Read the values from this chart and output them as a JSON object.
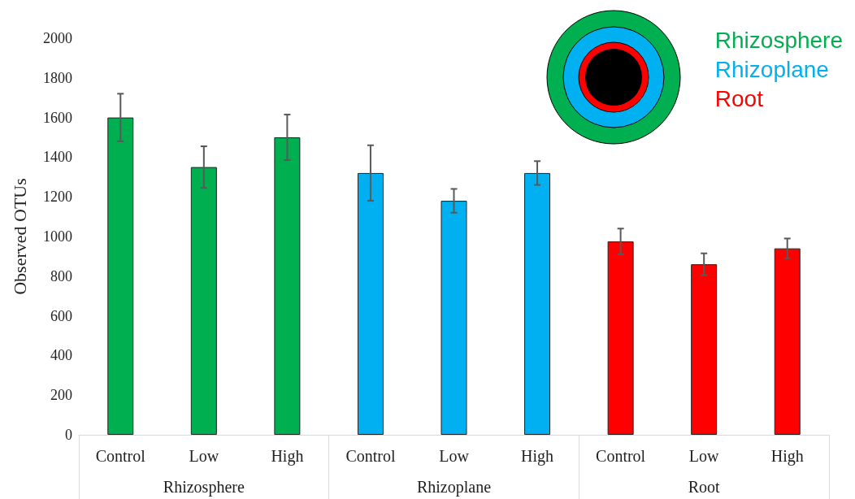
{
  "chart_data": {
    "type": "bar",
    "ylabel": "Observed OTUs",
    "categories": [
      "Control",
      "Low",
      "High",
      "Control",
      "Low",
      "High",
      "Control",
      "Low",
      "High"
    ],
    "stacked": true,
    "series": [
      {
        "name": "Rhizosphere",
        "color": "#00b050",
        "values": [
          1600,
          1350,
          1500,
          null,
          null,
          null,
          null,
          null,
          null
        ],
        "errors": [
          120,
          105,
          115,
          null,
          null,
          null,
          null,
          null,
          null
        ]
      },
      {
        "name": "Rhizoplane",
        "color": "#00b0f0",
        "values": [
          null,
          null,
          null,
          1320,
          1180,
          1320,
          null,
          null,
          null
        ],
        "errors": [
          null,
          null,
          null,
          140,
          60,
          60,
          null,
          null,
          null
        ]
      },
      {
        "name": "Root",
        "color": "#ff0000",
        "values": [
          null,
          null,
          null,
          null,
          null,
          null,
          975,
          860,
          940
        ],
        "errors": [
          null,
          null,
          null,
          null,
          null,
          null,
          65,
          55,
          50
        ]
      }
    ],
    "ylim": [
      0,
      2000
    ],
    "yticks": [
      0,
      200,
      400,
      600,
      800,
      1000,
      1200,
      1400,
      1600,
      1800,
      2000
    ],
    "grid": false,
    "legend": "top right",
    "annotations": [
      "Rhizosphere",
      "Rhizoplane",
      "Root"
    ]
  }
}
